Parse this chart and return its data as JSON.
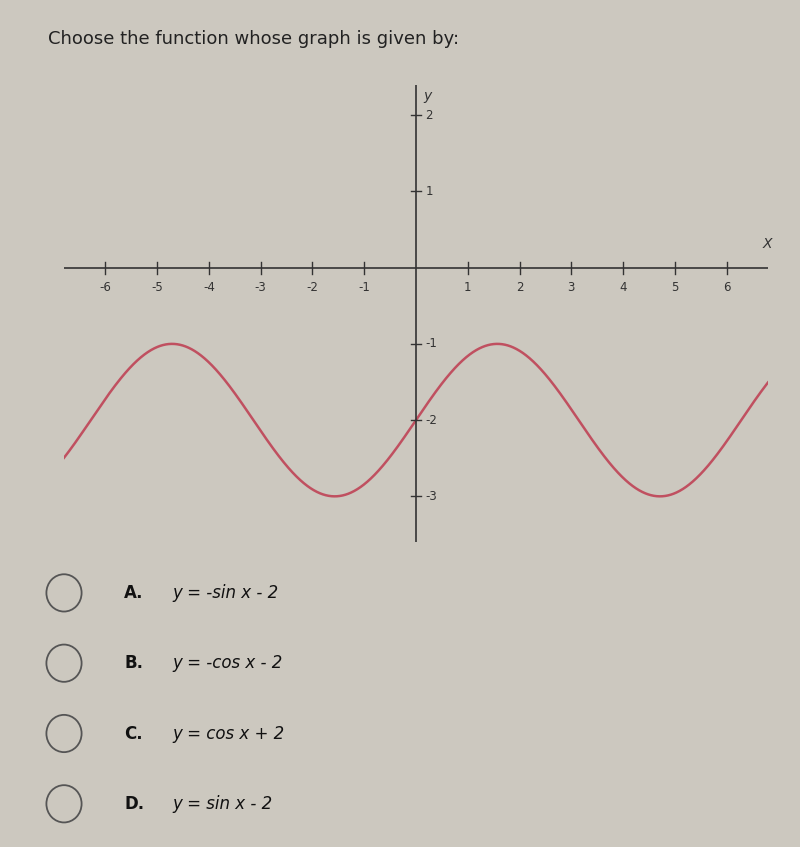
{
  "title": "Choose the function whose graph is given by:",
  "title_fontsize": 13,
  "title_color": "#222222",
  "bg_color": "#ccc8bf",
  "plot_bg_color": "#ccc8bf",
  "curve_color": "#c05060",
  "curve_linewidth": 1.8,
  "axis_color": "#333333",
  "tick_color": "#333333",
  "label_color": "#333333",
  "xlim": [
    -6.8,
    6.8
  ],
  "ylim": [
    -3.6,
    2.4
  ],
  "xticks": [
    -6,
    -5,
    -4,
    -3,
    -2,
    -1,
    1,
    2,
    3,
    4,
    5,
    6
  ],
  "yticks": [
    -3,
    -2,
    -1,
    1,
    2
  ],
  "xlabel": "X",
  "ylabel": "y",
  "choices": [
    {
      "label": "A.",
      "math": "y = -sin x - 2"
    },
    {
      "label": "B.",
      "math": "y = -cos x - 2"
    },
    {
      "label": "C.",
      "math": "y = cos x + 2"
    },
    {
      "label": "D.",
      "math": "y = sin x - 2"
    }
  ]
}
